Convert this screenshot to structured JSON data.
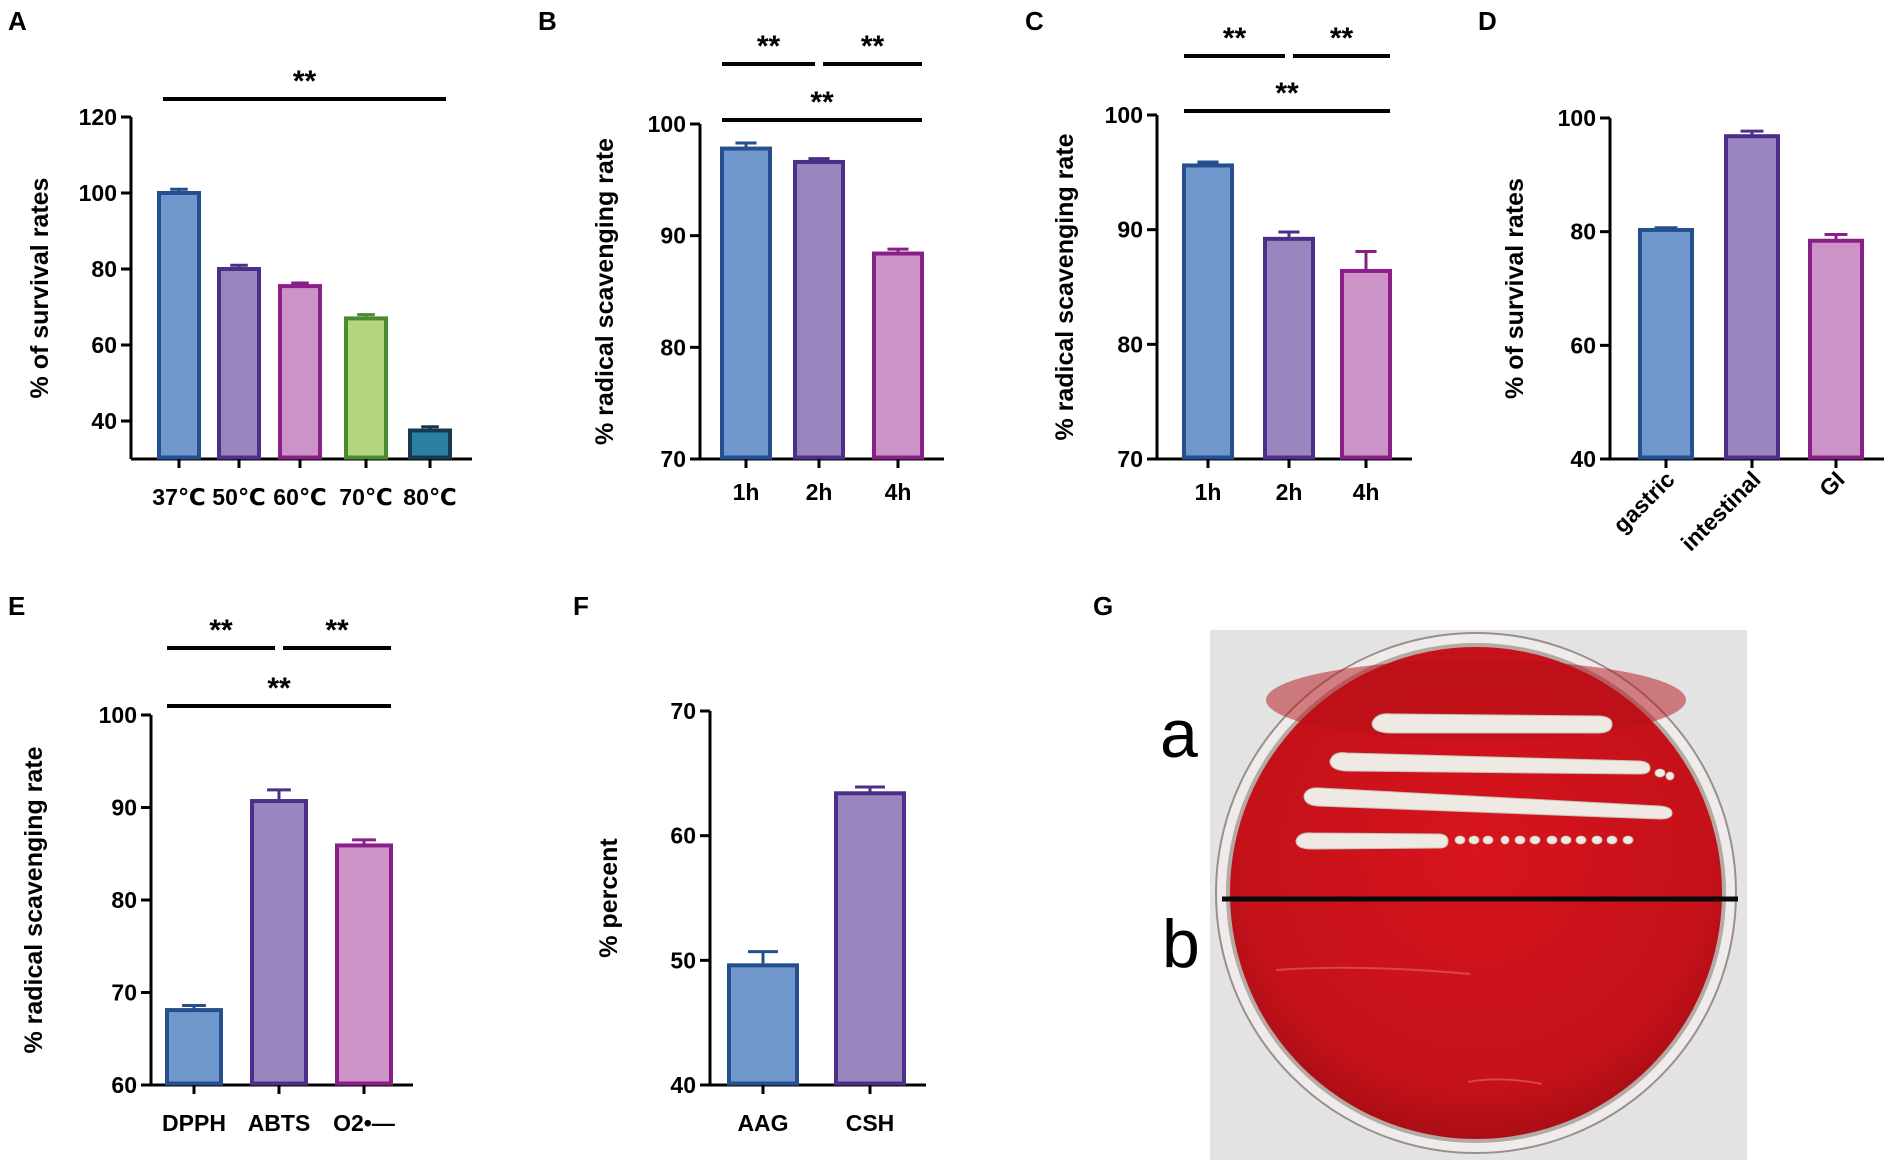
{
  "figure": {
    "panel_letters": [
      "A",
      "B",
      "C",
      "D",
      "E",
      "F",
      "G"
    ]
  },
  "colors": {
    "blue_fill": "#7098cc",
    "blue_edge": "#254f8e",
    "purple_fill": "#9a86be",
    "purple_edge": "#4d2f8a",
    "pink_fill": "#cc94c6",
    "pink_edge": "#8a1f8a",
    "green_fill": "#b4d67e",
    "green_edge": "#4c8a30",
    "teal_fill": "#2b7fa1",
    "teal_edge": "#18384f"
  },
  "chart_data": [
    {
      "panel": "A",
      "type": "bar",
      "categories": [
        "37℃",
        "50℃",
        "60℃",
        "70℃",
        "80℃"
      ],
      "values": [
        100,
        80,
        75.5,
        67,
        37.5
      ],
      "errors": [
        1.0,
        1.0,
        0.8,
        1.0,
        1.0
      ],
      "bar_colors": [
        "blue",
        "purple",
        "pink",
        "green",
        "teal"
      ],
      "ylabel": "% of survival rates",
      "ylim": [
        30,
        120
      ],
      "yticks": [
        40,
        60,
        80,
        100,
        120
      ],
      "significance": [
        {
          "from": 0,
          "to": 4,
          "label": "**"
        }
      ]
    },
    {
      "panel": "B",
      "type": "bar",
      "categories": [
        "1h",
        "2h",
        "4h"
      ],
      "values": [
        97.8,
        96.6,
        88.4
      ],
      "errors": [
        0.5,
        0.3,
        0.4
      ],
      "bar_colors": [
        "blue",
        "purple",
        "pink"
      ],
      "ylabel": "% radical scavenging rate",
      "ylim": [
        70,
        100
      ],
      "yticks": [
        70,
        80,
        90,
        100
      ],
      "significance": [
        {
          "from": 0,
          "to": 1,
          "label": "**"
        },
        {
          "from": 1,
          "to": 2,
          "label": "**"
        },
        {
          "from": 0,
          "to": 2,
          "label": "**"
        }
      ]
    },
    {
      "panel": "C",
      "type": "bar",
      "categories": [
        "1h",
        "2h",
        "4h"
      ],
      "values": [
        95.6,
        89.2,
        86.4
      ],
      "errors": [
        0.3,
        0.6,
        1.7
      ],
      "bar_colors": [
        "blue",
        "purple",
        "pink"
      ],
      "ylabel": "% radical scavenging rate",
      "ylim": [
        70,
        100
      ],
      "yticks": [
        70,
        80,
        90,
        100
      ],
      "significance": [
        {
          "from": 0,
          "to": 1,
          "label": "**"
        },
        {
          "from": 1,
          "to": 2,
          "label": "**"
        },
        {
          "from": 0,
          "to": 2,
          "label": "**"
        }
      ]
    },
    {
      "panel": "D",
      "type": "bar",
      "categories": [
        "gastric",
        "intestinal",
        "GI"
      ],
      "values": [
        80.3,
        96.8,
        78.4
      ],
      "errors": [
        0.4,
        0.9,
        1.1
      ],
      "bar_colors": [
        "blue",
        "purple",
        "pink"
      ],
      "ylabel": "% of survival rates",
      "ylim": [
        40,
        100
      ],
      "yticks": [
        40,
        60,
        80,
        100
      ],
      "rotated_xticks": true,
      "significance": []
    },
    {
      "panel": "E",
      "type": "bar",
      "categories": [
        "DPPH",
        "ABTS",
        "O2•—"
      ],
      "values": [
        68.1,
        90.7,
        85.9
      ],
      "errors": [
        0.5,
        1.2,
        0.6
      ],
      "bar_colors": [
        "blue",
        "purple",
        "pink"
      ],
      "ylabel": "% radical scavenging rate",
      "ylim": [
        60,
        100
      ],
      "yticks": [
        60,
        70,
        80,
        90,
        100
      ],
      "significance": [
        {
          "from": 0,
          "to": 1,
          "label": "**"
        },
        {
          "from": 1,
          "to": 2,
          "label": "**"
        },
        {
          "from": 0,
          "to": 2,
          "label": "**"
        }
      ]
    },
    {
      "panel": "F",
      "type": "bar",
      "categories": [
        "AAG",
        "CSH"
      ],
      "values": [
        49.6,
        63.4
      ],
      "errors": [
        1.1,
        0.5
      ],
      "bar_colors": [
        "blue",
        "purple"
      ],
      "ylabel": "% percent",
      "ylim": [
        40,
        70
      ],
      "yticks": [
        40,
        50,
        60,
        70
      ],
      "significance": []
    }
  ],
  "plate": {
    "labels": {
      "a": "a",
      "b": "b"
    }
  }
}
